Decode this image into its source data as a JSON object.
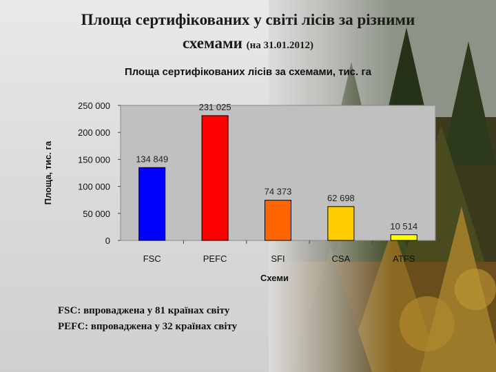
{
  "slide": {
    "title_line1": "Площа сертифікованих у світі лісів за різними",
    "title_line2": "схемами",
    "title_date": "(на 31.01.2012)"
  },
  "notes": [
    "FSC: впроваджена у 81 країнах світу",
    "PEFC: впроваджена у 32 країнах світу"
  ],
  "chart_data": {
    "type": "bar",
    "title": "Площа сертифікованих лісів за схемами, тис. га",
    "xlabel": "Схеми",
    "ylabel": "Площа, тис. га",
    "categories": [
      "FSC",
      "PEFC",
      "SFI",
      "CSA",
      "ATFS"
    ],
    "values": [
      134849,
      231025,
      74373,
      62698,
      10514
    ],
    "value_labels": [
      "134 849",
      "231 025",
      "74 373",
      "62 698",
      "10 514"
    ],
    "colors": [
      "#0000ff",
      "#ff0000",
      "#ff6600",
      "#ffcc00",
      "#ffff00"
    ],
    "ylim": [
      0,
      250000
    ],
    "yticks": [
      0,
      50000,
      100000,
      150000,
      200000,
      250000
    ],
    "ytick_labels": [
      "0",
      "50 000",
      "100 000",
      "150 000",
      "200 000",
      "250 000"
    ],
    "grid": false,
    "plot_background": "#c0c0c0"
  }
}
